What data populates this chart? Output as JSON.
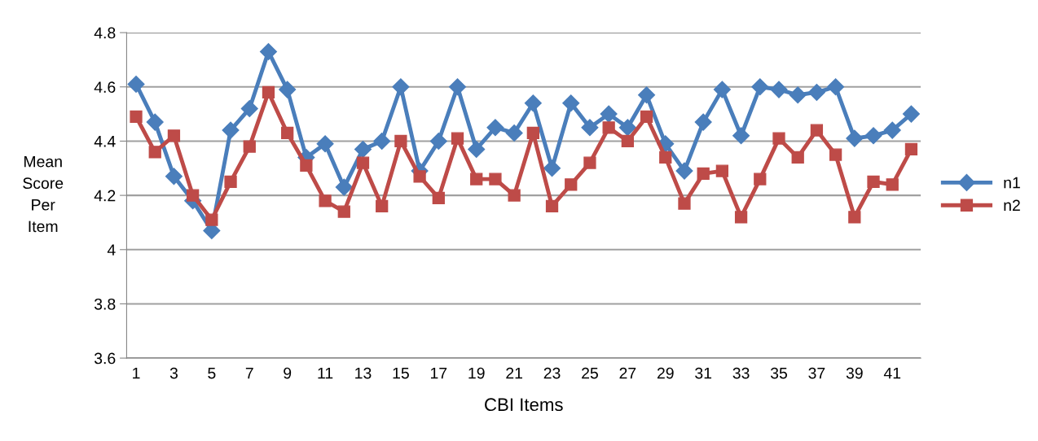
{
  "chart_data": {
    "type": "line",
    "xlabel": "CBI Items",
    "ylabel": "Mean Score Per Item",
    "categories": [
      "1",
      null,
      "3",
      null,
      "5",
      null,
      "7",
      null,
      "9",
      null,
      "11",
      null,
      "13",
      null,
      "15",
      null,
      "17",
      null,
      "19",
      null,
      "21",
      null,
      "23",
      null,
      "25",
      null,
      "27",
      null,
      "29",
      null,
      "31",
      null,
      "33",
      null,
      "35",
      null,
      "37",
      null,
      "39",
      null,
      "41",
      null
    ],
    "series": [
      {
        "name": "n1",
        "color": "#4a7ebb",
        "marker": "diamond",
        "values": [
          4.61,
          4.47,
          4.27,
          4.18,
          4.07,
          4.44,
          4.52,
          4.73,
          4.59,
          4.34,
          4.39,
          4.23,
          4.37,
          4.4,
          4.6,
          4.29,
          4.4,
          4.6,
          4.37,
          4.45,
          4.43,
          4.54,
          4.3,
          4.54,
          4.45,
          4.5,
          4.45,
          4.57,
          4.39,
          4.29,
          4.47,
          4.59,
          4.42,
          4.6,
          4.59,
          4.57,
          4.58,
          4.6,
          4.41,
          4.42,
          4.44,
          4.5
        ]
      },
      {
        "name": "n2",
        "color": "#be4b48",
        "marker": "square",
        "values": [
          4.49,
          4.36,
          4.42,
          4.2,
          4.11,
          4.25,
          4.38,
          4.58,
          4.43,
          4.31,
          4.18,
          4.14,
          4.32,
          4.16,
          4.4,
          4.27,
          4.19,
          4.41,
          4.26,
          4.26,
          4.2,
          4.43,
          4.16,
          4.24,
          4.32,
          4.45,
          4.4,
          4.49,
          4.34,
          4.17,
          4.28,
          4.29,
          4.12,
          4.26,
          4.41,
          4.34,
          4.44,
          4.35,
          4.12,
          4.25,
          4.24,
          4.37
        ]
      }
    ],
    "ylim": [
      3.6,
      4.8
    ],
    "yticks": [
      3.6,
      3.8,
      4,
      4.2,
      4.4,
      4.6,
      4.8
    ],
    "grid": "y",
    "legend": "right",
    "line_style": "solid"
  }
}
